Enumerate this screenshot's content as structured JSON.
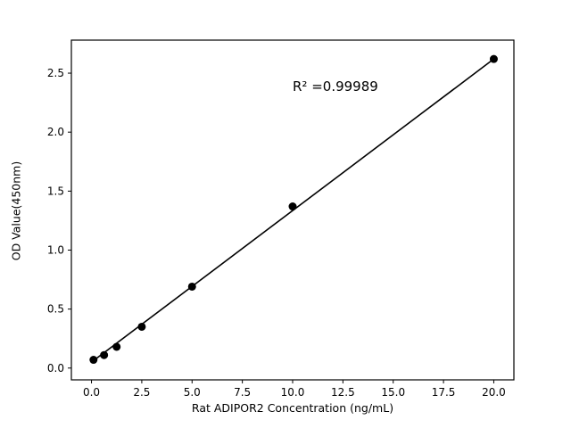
{
  "chart_data": {
    "type": "scatter",
    "title": "",
    "xlabel": "Rat ADIPOR2 Concentration (ng/mL)",
    "ylabel": "OD Value(450nm)",
    "annotation": "R² =0.99989",
    "x": [
      0.1,
      0.625,
      1.25,
      2.5,
      5,
      10,
      20
    ],
    "y": [
      0.07,
      0.11,
      0.18,
      0.35,
      0.69,
      1.37,
      2.62
    ],
    "fit_line": {
      "x1": 0,
      "y1": 0.05,
      "x2": 20,
      "y2": 2.62
    },
    "xlim": [
      -1,
      21
    ],
    "ylim": [
      -0.1,
      2.78
    ],
    "xticks": [
      0.0,
      2.5,
      5.0,
      7.5,
      10.0,
      12.5,
      15.0,
      17.5,
      20.0
    ],
    "yticks": [
      0.0,
      0.5,
      1.0,
      1.5,
      2.0,
      2.5
    ],
    "grid": false,
    "legend": "none",
    "marker_color": "#000000",
    "line_color": "#000000",
    "background_color": "#ffffff"
  }
}
